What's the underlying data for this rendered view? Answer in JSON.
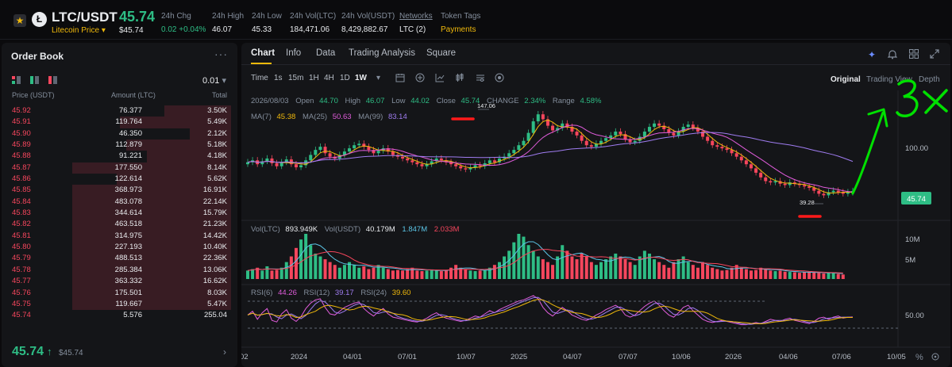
{
  "header": {
    "star_icon": "star-icon",
    "coin_icon": "litecoin-logo",
    "coin_glyph": "Ł",
    "symbol": "LTC/USDT",
    "subtitle": "Litecoin Price",
    "subtitle_caret": "▾",
    "price": "45.74",
    "price_usd": "$45.74",
    "stats": [
      {
        "label": "24h Chg",
        "value": "0.02 +0.04%",
        "color": "green"
      },
      {
        "label": "24h High",
        "value": "46.07",
        "color": "white"
      },
      {
        "label": "24h Low",
        "value": "45.33",
        "color": "white"
      },
      {
        "label": "24h Vol(LTC)",
        "value": "184,471.06",
        "color": "white"
      },
      {
        "label": "24h Vol(USDT)",
        "value": "8,429,882.67",
        "color": "white"
      },
      {
        "label": "Networks",
        "value": "LTC (2)",
        "color": "white"
      },
      {
        "label": "Token Tags",
        "value": "Payments",
        "color": "yellow"
      }
    ]
  },
  "orderbook": {
    "title": "Order Book",
    "more": "···",
    "precision": "0.01",
    "precision_caret": "▾",
    "col_price": "Price (USDT)",
    "col_amount": "Amount (LTC)",
    "col_total": "Total",
    "rows": [
      {
        "price": "45.92",
        "amount": "76.377",
        "total": "3.50K",
        "depth": 0.42
      },
      {
        "price": "45.91",
        "amount": "119.764",
        "total": "5.49K",
        "depth": 0.7
      },
      {
        "price": "45.90",
        "amount": "46.350",
        "total": "2.12K",
        "depth": 0.26
      },
      {
        "price": "45.89",
        "amount": "112.879",
        "total": "5.18K",
        "depth": 0.66
      },
      {
        "price": "45.88",
        "amount": "91.221",
        "total": "4.18K",
        "depth": 0.53
      },
      {
        "price": "45.87",
        "amount": "177.550",
        "total": "8.14K",
        "depth": 1.0
      },
      {
        "price": "45.86",
        "amount": "122.614",
        "total": "5.62K",
        "depth": 0.72
      },
      {
        "price": "45.85",
        "amount": "368.973",
        "total": "16.91K",
        "depth": 1.0
      },
      {
        "price": "45.84",
        "amount": "483.078",
        "total": "22.14K",
        "depth": 1.0
      },
      {
        "price": "45.83",
        "amount": "344.614",
        "total": "15.79K",
        "depth": 1.0
      },
      {
        "price": "45.82",
        "amount": "463.518",
        "total": "21.23K",
        "depth": 1.0
      },
      {
        "price": "45.81",
        "amount": "314.975",
        "total": "14.42K",
        "depth": 1.0
      },
      {
        "price": "45.80",
        "amount": "227.193",
        "total": "10.40K",
        "depth": 1.0
      },
      {
        "price": "45.79",
        "amount": "488.513",
        "total": "22.36K",
        "depth": 1.0
      },
      {
        "price": "45.78",
        "amount": "285.384",
        "total": "13.06K",
        "depth": 1.0
      },
      {
        "price": "45.77",
        "amount": "363.332",
        "total": "16.62K",
        "depth": 1.0
      },
      {
        "price": "45.76",
        "amount": "175.501",
        "total": "8.03K",
        "depth": 1.0
      },
      {
        "price": "45.75",
        "amount": "119.667",
        "total": "5.47K",
        "depth": 1.0
      },
      {
        "price": "45.74",
        "amount": "5.576",
        "total": "255.04",
        "depth": 0.0
      }
    ],
    "last_price": "45.74",
    "last_arrow": "↑",
    "last_price_usd": "$45.74",
    "chevron": "›"
  },
  "chart_panel": {
    "tabs": [
      "Chart",
      "Info",
      "Data",
      "Trading Analysis",
      "Square"
    ],
    "header_icons": [
      "sparkle-icon",
      "bell-icon",
      "grid-icon",
      "expand-icon"
    ],
    "intervals_label": "Time",
    "intervals": [
      "1s",
      "15m",
      "1H",
      "4H",
      "1D",
      "1W"
    ],
    "active_interval": "1W",
    "interval_caret": "▾",
    "tool_icons": [
      "calendar-icon",
      "crosshair-icon",
      "indicator-icon",
      "candle-type-icon",
      "settings-icon",
      "target-icon"
    ],
    "views": [
      "Original",
      "Trading View",
      "Depth"
    ],
    "active_view": "Original"
  },
  "ohlc": {
    "date": "2026/08/03",
    "open_label": "Open",
    "open": "44.70",
    "high_label": "High",
    "high": "46.07",
    "low_label": "Low",
    "low": "44.02",
    "close_label": "Close",
    "close": "45.74",
    "change_label": "CHANGE",
    "change": "2.34%",
    "range_label": "Range",
    "range": "4.58%"
  },
  "ma_legend": {
    "ma7_label": "MA(7)",
    "ma7": "45.38",
    "ma25_label": "MA(25)",
    "ma25": "50.63",
    "ma99_label": "MA(99)",
    "ma99": "83.14"
  },
  "vol_legend": {
    "ltc_label": "Vol(LTC)",
    "ltc": "893.949K",
    "usdt_label": "Vol(USDT)",
    "usdt": "40.179M",
    "v1": "1.847M",
    "v2": "2.033M"
  },
  "rsi_legend": {
    "rsi6_label": "RSI(6)",
    "rsi6": "44.26",
    "rsi12_label": "RSI(12)",
    "rsi12": "39.17",
    "rsi24_label": "RSI(24)",
    "rsi24": "39.60"
  },
  "annotations": {
    "high_label": "147.06",
    "low_label": "39.28",
    "handwritten": "3x"
  },
  "footer_icons": [
    "percent-icon",
    "settings-icon"
  ],
  "colors": {
    "up": "#2ebd85",
    "down": "#f6465d",
    "accent": "#f0b90b",
    "ma7": "#f0b90b",
    "ma25": "#e05cdb",
    "ma99": "#9f7cf0",
    "vol_ltc": "#2ebd85",
    "vol_usdt": "#5bc5e6",
    "rsi6": "#e05cdb",
    "rsi12": "#9f7cf0",
    "rsi24": "#f0b90b",
    "annotation": "#00e000",
    "annotation_red": "#ff1a1a"
  },
  "chart_data": {
    "type": "candlestick",
    "interval": "1W",
    "x_ticks": [
      "02",
      "2024",
      "04/01",
      "07/01",
      "10/07",
      "2025",
      "04/07",
      "07/07",
      "10/06",
      "2026",
      "04/06",
      "07/06",
      "10/05"
    ],
    "price_axis": {
      "ticks": [
        100.0
      ],
      "tick_labels": [
        "100.00"
      ],
      "scale": "log",
      "range": [
        35,
        160
      ]
    },
    "last_price": 45.74,
    "marked_high": 147.06,
    "marked_low": 39.28,
    "closes": [
      70,
      72,
      68,
      71,
      74,
      69,
      66,
      70,
      73,
      68,
      65,
      67,
      72,
      78,
      84,
      88,
      80,
      76,
      74,
      78,
      82,
      86,
      90,
      92,
      88,
      84,
      80,
      83,
      86,
      82,
      78,
      76,
      74,
      72,
      70,
      68,
      66,
      68,
      71,
      74,
      72,
      70,
      68,
      66,
      64,
      63,
      65,
      67,
      66,
      69,
      72,
      70,
      74,
      76,
      80,
      84,
      90,
      96,
      108,
      128,
      142,
      132,
      120,
      112,
      116,
      124,
      118,
      110,
      104,
      96,
      90,
      88,
      92,
      96,
      100,
      104,
      110,
      106,
      98,
      94,
      96,
      102,
      110,
      118,
      124,
      120,
      114,
      108,
      104,
      110,
      118,
      122,
      116,
      110,
      102,
      96,
      90,
      88,
      86,
      84,
      80,
      76,
      72,
      68,
      64,
      60,
      56,
      53,
      52,
      53,
      51,
      50,
      52,
      51,
      50,
      49,
      48,
      46,
      44,
      43,
      45,
      46,
      45,
      44,
      45,
      45.74
    ],
    "opens": [
      68,
      70,
      72,
      68,
      71,
      74,
      69,
      66,
      70,
      73,
      68,
      65,
      67,
      72,
      78,
      84,
      88,
      80,
      76,
      74,
      78,
      82,
      86,
      90,
      92,
      88,
      84,
      80,
      83,
      86,
      82,
      78,
      76,
      74,
      72,
      70,
      68,
      66,
      68,
      71,
      74,
      72,
      70,
      68,
      66,
      64,
      63,
      65,
      67,
      66,
      69,
      72,
      70,
      74,
      76,
      80,
      84,
      90,
      96,
      108,
      128,
      142,
      132,
      120,
      112,
      116,
      124,
      118,
      110,
      104,
      96,
      90,
      88,
      92,
      96,
      100,
      104,
      110,
      106,
      98,
      94,
      96,
      102,
      110,
      118,
      124,
      120,
      114,
      108,
      104,
      110,
      118,
      122,
      116,
      110,
      102,
      96,
      90,
      88,
      86,
      84,
      80,
      76,
      72,
      68,
      64,
      60,
      56,
      53,
      52,
      53,
      51,
      50,
      52,
      51,
      50,
      49,
      48,
      46,
      44,
      43,
      45,
      46,
      45,
      44,
      44.7
    ],
    "ma7": {
      "name": "MA(7)",
      "last": 45.38
    },
    "ma25": {
      "name": "MA(25)",
      "last": 50.63
    },
    "ma99": {
      "name": "MA(99)",
      "last": 83.14
    },
    "volume_axis": {
      "ticks": [
        10000000,
        5000000
      ],
      "tick_labels": [
        "10M",
        "5M"
      ]
    },
    "volume": [
      3,
      3.5,
      4,
      3,
      4.5,
      3,
      3.2,
      4,
      6,
      8,
      11,
      14,
      16,
      12,
      9,
      8,
      7,
      6,
      5,
      4,
      5,
      6,
      5,
      4,
      4.5,
      3.5,
      4,
      5,
      4,
      3.5,
      3,
      3.2,
      3,
      3.5,
      4,
      3,
      2.8,
      3,
      3.4,
      3,
      2.8,
      3,
      4,
      5,
      4,
      3.5,
      3,
      2.8,
      3,
      3.2,
      4,
      5,
      6,
      8,
      10,
      13,
      16,
      15,
      12,
      10,
      8,
      7,
      6,
      5,
      8,
      12,
      10,
      8,
      7,
      9,
      8,
      6,
      5,
      6,
      7,
      8,
      9,
      8,
      7,
      6,
      5,
      8,
      10,
      9,
      7,
      6,
      5,
      4,
      6,
      7,
      8,
      6,
      5,
      4,
      6,
      5,
      4,
      3.5,
      3,
      3.2,
      4,
      5,
      4,
      3.5,
      3,
      3.2,
      4,
      3.5,
      3,
      2.8,
      3,
      2.6,
      2.5,
      2.4,
      2.2,
      2.5,
      2.4,
      2.3,
      2.2,
      2,
      2.1,
      2.2,
      1.8,
      1.6
    ],
    "rsi_axis": {
      "ticks": [
        50.0
      ],
      "tick_labels": [
        "50.00"
      ],
      "range": [
        0,
        100
      ]
    },
    "rsi6": [
      48,
      55,
      40,
      52,
      60,
      38,
      35,
      50,
      58,
      42,
      36,
      45,
      60,
      70,
      76,
      78,
      62,
      50,
      48,
      55,
      62,
      66,
      70,
      72,
      60,
      52,
      46,
      54,
      60,
      50,
      44,
      42,
      40,
      38,
      36,
      35,
      38,
      42,
      48,
      52,
      46,
      42,
      40,
      38,
      36,
      38,
      42,
      46,
      44,
      50,
      56,
      52,
      58,
      62,
      66,
      70,
      74,
      76,
      80,
      84,
      78,
      62,
      52,
      46,
      54,
      62,
      56,
      48,
      44,
      40,
      38,
      42,
      48,
      52,
      58,
      62,
      66,
      60,
      48,
      44,
      48,
      56,
      64,
      70,
      74,
      66,
      56,
      48,
      44,
      52,
      62,
      66,
      56,
      48,
      40,
      36,
      34,
      36,
      38,
      36,
      34,
      32,
      30,
      30,
      32,
      34,
      32,
      36,
      40,
      38,
      36,
      40,
      42,
      38,
      36,
      34,
      32,
      36,
      42,
      44,
      40,
      44,
      46,
      42,
      44,
      44.26
    ],
    "rsi12": {
      "name": "RSI(12)",
      "last": 39.17
    },
    "rsi24": {
      "name": "RSI(24)",
      "last": 39.6
    }
  }
}
